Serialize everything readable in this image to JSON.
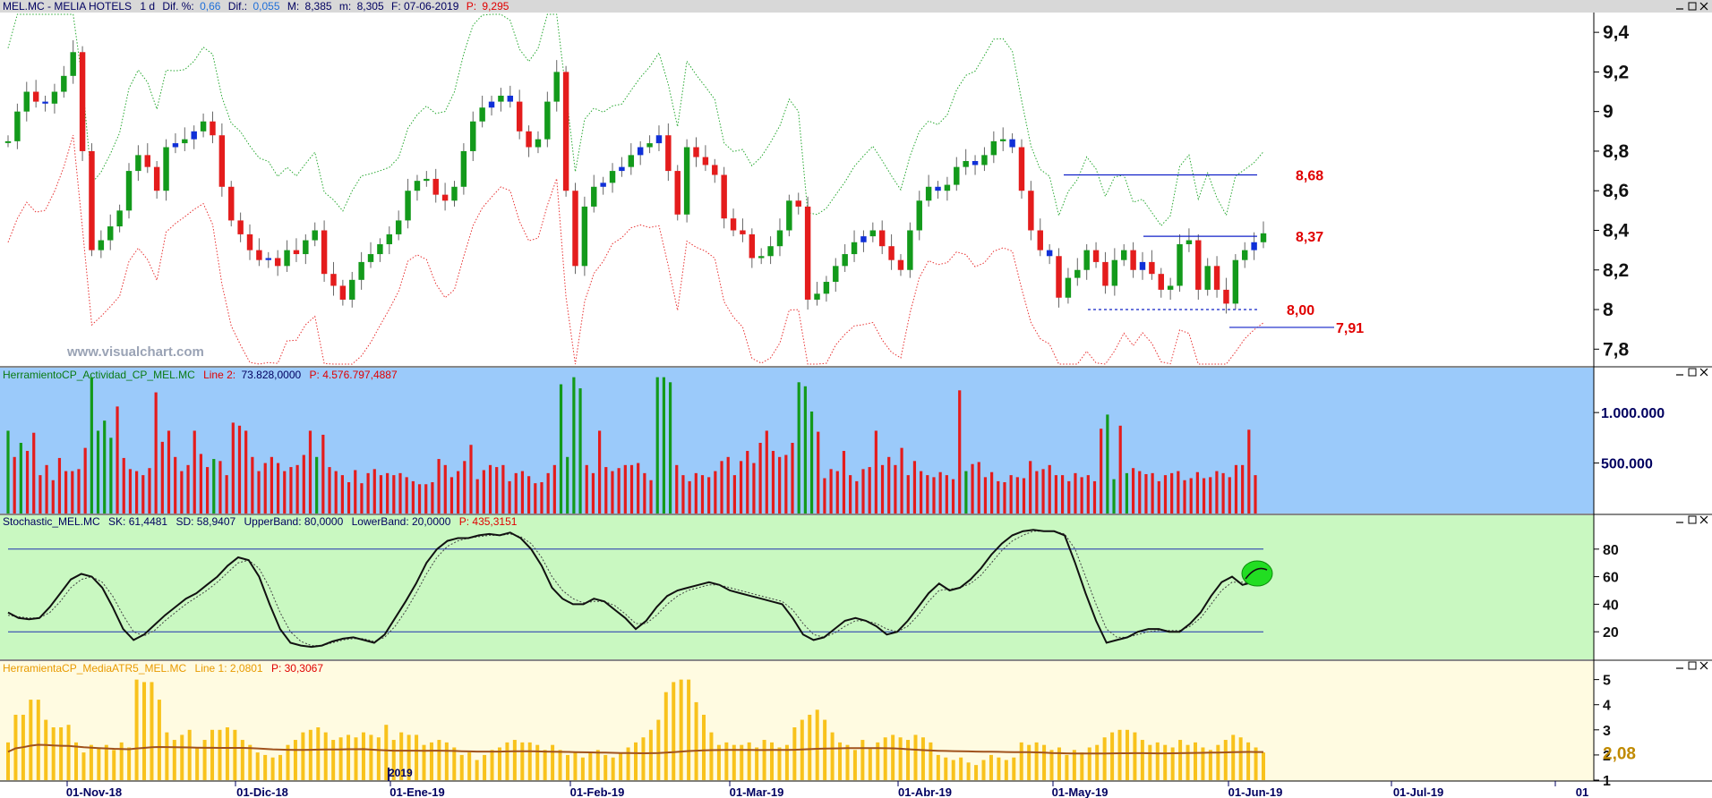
{
  "main_title": {
    "symbol": "MEL.MC - MELIA HOTELS",
    "period": "1 d",
    "dif_pct_label": "Dif. %:",
    "dif_pct": "0,66",
    "dif_label": "Dif.:",
    "dif": "0,055",
    "max_label": "M:",
    "max": "8,385",
    "min_label": "m:",
    "min": "8,305",
    "date_label": "F: 07-06-2019",
    "p_label": "P:",
    "p": "9,295"
  },
  "watermark": "www.visualchart.com",
  "colors": {
    "up": "#139a1b",
    "down": "#e41c1c",
    "inside": "#1030d8",
    "axis_text": "#000060",
    "level": "#e00000",
    "vol_bg": "#9bcafa",
    "stoch_bg": "#c9f8c1",
    "atr_bg": "#fffbe1"
  },
  "chart_data": [
    {
      "type": "candlestick",
      "title": "MEL.MC - MELIA HOTELS",
      "ylim": [
        7.72,
        9.5
      ],
      "yticks": [
        "9,4",
        "9,2",
        "9",
        "8,8",
        "8,6",
        "8,4",
        "8,2",
        "8",
        "7,8"
      ],
      "ytick_values": [
        9.4,
        9.2,
        9.0,
        8.8,
        8.6,
        8.4,
        8.2,
        8.0,
        7.8
      ],
      "x_axis_labels": [
        "01-Nov-18",
        "01-Dic-18",
        "01-Ene-19",
        "01-Feb-19",
        "01-Mar-19",
        "01-Abr-19",
        "01-May-19",
        "01-Jun-19",
        "01-Jul-19",
        "01"
      ],
      "year_marker": "2019",
      "closes": [
        8.85,
        9.0,
        9.1,
        9.05,
        9.04,
        9.1,
        9.18,
        9.3,
        8.8,
        8.3,
        8.35,
        8.42,
        8.5,
        8.7,
        8.78,
        8.72,
        8.6,
        8.82,
        8.84,
        8.86,
        8.9,
        8.95,
        8.88,
        8.62,
        8.45,
        8.38,
        8.3,
        8.25,
        8.26,
        8.22,
        8.3,
        8.28,
        8.35,
        8.4,
        8.18,
        8.12,
        8.05,
        8.15,
        8.24,
        8.28,
        8.33,
        8.38,
        8.45,
        8.6,
        8.65,
        8.66,
        8.58,
        8.55,
        8.62,
        8.8,
        8.95,
        9.02,
        9.05,
        9.08,
        9.05,
        8.9,
        8.82,
        8.86,
        9.05,
        9.2,
        8.6,
        8.22,
        8.52,
        8.62,
        8.64,
        8.7,
        8.72,
        8.78,
        8.82,
        8.84,
        8.88,
        8.7,
        8.48,
        8.82,
        8.77,
        8.73,
        8.68,
        8.46,
        8.4,
        8.38,
        8.26,
        8.27,
        8.32,
        8.4,
        8.55,
        8.52,
        8.05,
        8.08,
        8.14,
        8.22,
        8.28,
        8.34,
        8.37,
        8.4,
        8.32,
        8.25,
        8.2,
        8.4,
        8.55,
        8.62,
        8.6,
        8.63,
        8.72,
        8.75,
        8.73,
        8.78,
        8.85,
        8.86,
        8.82,
        8.6,
        8.4,
        8.3,
        8.27,
        8.06,
        8.16,
        8.2,
        8.3,
        8.24,
        8.12,
        8.25,
        8.3,
        8.2,
        8.24,
        8.18,
        8.1,
        8.12,
        8.33,
        8.35,
        8.1,
        8.22,
        8.1,
        8.03,
        8.25,
        8.3,
        8.34,
        8.385
      ],
      "ma_line": "dotted green upper / dotted red lower envelopes",
      "levels": [
        {
          "value": 8.68,
          "label": "8,68",
          "style": "solid"
        },
        {
          "value": 8.37,
          "label": "8,37",
          "style": "solid"
        },
        {
          "value": 8.0,
          "label": "8,00",
          "style": "dashed"
        },
        {
          "value": 7.91,
          "label": "7,91",
          "style": "solid"
        }
      ]
    },
    {
      "type": "bar",
      "title": "HerramientoCP_Actividad_CP_MEL.MC",
      "header": {
        "name": "HerramientoCP_Actividad_CP_MEL.MC",
        "line": "Line 2:",
        "line_val": "73.828,0000",
        "p": "P: 4.576.797,4887"
      },
      "yticks": [
        "1.000.000",
        "500.000"
      ],
      "ytick_values": [
        1000000,
        500000
      ],
      "ylim": [
        0,
        1400000
      ],
      "values": [
        820000,
        560000,
        700000,
        620000,
        800000,
        380000,
        480000,
        330000,
        550000,
        420000,
        420000,
        440000,
        650000,
        1350000,
        820000,
        920000,
        750000,
        1060000,
        550000,
        440000,
        420000,
        380000,
        450000,
        1200000,
        710000,
        820000,
        560000,
        420000,
        480000,
        820000,
        590000,
        460000,
        540000,
        520000,
        380000,
        900000,
        870000,
        820000,
        560000,
        420000,
        500000,
        560000,
        500000,
        420000,
        460000,
        480000,
        580000,
        820000,
        560000,
        780000,
        460000,
        420000,
        380000,
        310000,
        430000,
        300000,
        400000,
        440000,
        380000,
        400000,
        380000,
        400000,
        360000,
        320000,
        290000,
        290000,
        310000,
        540000,
        480000,
        360000,
        420000,
        520000,
        680000,
        340000,
        430000,
        480000,
        460000,
        480000,
        320000,
        400000,
        420000,
        370000,
        300000,
        310000,
        400000,
        480000,
        1280000,
        560000,
        1350000,
        1240000,
        480000,
        400000,
        820000,
        460000,
        420000,
        450000,
        480000,
        480000,
        500000,
        400000,
        330000,
        1350000,
        1350000,
        1300000,
        480000,
        380000,
        320000,
        400000,
        380000,
        360000,
        420000,
        520000,
        560000,
        380000,
        520000,
        620000,
        500000,
        700000,
        820000,
        620000,
        560000,
        580000,
        700000,
        1300000,
        1260000,
        1010000,
        810000,
        350000,
        440000,
        420000,
        620000,
        380000,
        320000,
        440000,
        460000,
        820000,
        480000,
        560000,
        480000,
        650000,
        380000,
        520000,
        420000,
        380000,
        360000,
        410000,
        380000,
        340000,
        1220000,
        420000,
        490000,
        510000,
        360000,
        410000,
        320000,
        310000,
        380000,
        360000,
        350000,
        520000,
        420000,
        440000,
        480000,
        380000,
        380000,
        320000,
        400000,
        360000,
        380000,
        320000,
        840000,
        980000,
        340000,
        870000,
        400000,
        450000,
        420000,
        390000,
        400000,
        320000,
        380000,
        400000,
        420000,
        330000,
        350000,
        410000,
        350000,
        360000,
        420000,
        400000,
        360000,
        480000,
        480000,
        830000,
        380000
      ],
      "colors_up": [
        true,
        false,
        true,
        false,
        false,
        false,
        false,
        false,
        false,
        false,
        false,
        false,
        false,
        true,
        true,
        true,
        true,
        false,
        false,
        false,
        false,
        false,
        false,
        false,
        false,
        false,
        false,
        false,
        false,
        false,
        false,
        false,
        true,
        false,
        false,
        false,
        false,
        false,
        false,
        false,
        false,
        false,
        false,
        false,
        false,
        false,
        false,
        false,
        true,
        false,
        false,
        false,
        false,
        false,
        false,
        false,
        false,
        false,
        false,
        false,
        false,
        false,
        false,
        false,
        false,
        false,
        false,
        false,
        false,
        false,
        false,
        false,
        false,
        false,
        false,
        false,
        false,
        false,
        false,
        false,
        false,
        false,
        false,
        false,
        false,
        false,
        true,
        true,
        true,
        true,
        false,
        false,
        false,
        false,
        false,
        false,
        false,
        false,
        false,
        false,
        false,
        true,
        true,
        true,
        false,
        false,
        false,
        false,
        false,
        false,
        false,
        false,
        false,
        false,
        false,
        false,
        false,
        false,
        false,
        false,
        false,
        false,
        false,
        true,
        true,
        true,
        false,
        false,
        false,
        false,
        false,
        false,
        false,
        false,
        false,
        false,
        false,
        false,
        false,
        false,
        false,
        false,
        false,
        false,
        false,
        false,
        false,
        false,
        false,
        true,
        false,
        false,
        false,
        false,
        false,
        false,
        false,
        false,
        false,
        false,
        false,
        false,
        false,
        false,
        false,
        false,
        false,
        false,
        false,
        false,
        false,
        true,
        true,
        false,
        true,
        false,
        false,
        false,
        false,
        false,
        false,
        false,
        false,
        false,
        false,
        false,
        false,
        false,
        false,
        false,
        false,
        false,
        false,
        false,
        false,
        true,
        false
      ]
    },
    {
      "type": "line",
      "title": "Stochastic_MEL.MC",
      "header": {
        "name": "Stochastic_MEL.MC",
        "sk": "SK: 61,4481",
        "sd": "SD: 58,9407",
        "ub": "UpperBand: 80,0000",
        "lb": "LowerBand: 20,0000",
        "p": "P: 435,3151"
      },
      "yticks": [
        "80",
        "60",
        "40",
        "20"
      ],
      "ytick_values": [
        80,
        60,
        40,
        20
      ],
      "ylim": [
        0,
        100
      ],
      "bands": [
        80,
        20
      ],
      "sk": [
        34,
        30,
        29,
        30,
        38,
        48,
        58,
        62,
        60,
        52,
        38,
        22,
        14,
        18,
        25,
        32,
        38,
        44,
        48,
        54,
        60,
        68,
        74,
        72,
        60,
        40,
        22,
        12,
        10,
        9,
        10,
        13,
        15,
        16,
        14,
        12,
        18,
        30,
        42,
        55,
        70,
        80,
        86,
        88,
        88,
        90,
        91,
        90,
        92,
        88,
        80,
        68,
        52,
        44,
        40,
        40,
        44,
        42,
        36,
        30,
        22,
        28,
        38,
        46,
        50,
        52,
        54,
        56,
        54,
        50,
        48,
        46,
        44,
        42,
        40,
        30,
        18,
        14,
        16,
        22,
        28,
        30,
        28,
        24,
        18,
        20,
        28,
        38,
        48,
        55,
        50,
        52,
        58,
        66,
        76,
        84,
        90,
        93,
        94,
        93,
        93,
        90,
        70,
        48,
        28,
        12,
        14,
        16,
        20,
        22,
        22,
        20,
        20,
        26,
        34,
        46,
        56,
        60,
        54,
        56,
        61
      ],
      "sd": [
        32,
        31,
        30,
        30,
        34,
        42,
        52,
        58,
        60,
        56,
        46,
        32,
        20,
        17,
        21,
        28,
        34,
        40,
        45,
        50,
        56,
        63,
        70,
        72,
        66,
        52,
        34,
        20,
        13,
        10,
        10,
        12,
        14,
        15,
        15,
        13,
        16,
        24,
        35,
        48,
        62,
        74,
        82,
        86,
        88,
        89,
        90,
        90,
        91,
        89,
        84,
        74,
        60,
        50,
        44,
        41,
        42,
        42,
        39,
        33,
        26,
        26,
        32,
        40,
        46,
        50,
        52,
        54,
        54,
        52,
        50,
        48,
        46,
        44,
        42,
        36,
        26,
        18,
        16,
        19,
        24,
        28,
        28,
        26,
        22,
        20,
        24,
        32,
        42,
        50,
        51,
        52,
        55,
        61,
        70,
        79,
        86,
        90,
        93,
        93,
        93,
        91,
        80,
        60,
        40,
        22,
        16,
        16,
        18,
        20,
        21,
        21,
        21,
        24,
        30,
        40,
        50,
        56,
        56,
        55,
        59
      ]
    },
    {
      "type": "bar",
      "title": "HerramientaCP_MediaATR5_MEL.MC",
      "header": {
        "name": "HerramientaCP_MediaATR5_MEL.MC",
        "line": "Line 1: 2,0801",
        "p": "P: 30,3067"
      },
      "yticks": [
        "5",
        "4",
        "3",
        "2",
        "1"
      ],
      "ytick_values": [
        5,
        4,
        3,
        2,
        1
      ],
      "ylim": [
        1,
        5.2
      ],
      "current_value_label": "2,08",
      "values": [
        2.5,
        3.6,
        3.6,
        4.2,
        4.2,
        3.4,
        3.1,
        3.1,
        3.2,
        2.5,
        2.1,
        2.4,
        2.3,
        2.4,
        2.2,
        2.5,
        2.3,
        5.0,
        4.9,
        4.9,
        4.2,
        2.9,
        2.6,
        2.8,
        3.0,
        2.3,
        2.6,
        3.0,
        3.0,
        3.1,
        3.0,
        2.6,
        2.4,
        2.1,
        2.0,
        1.9,
        2.0,
        2.4,
        2.6,
        2.9,
        3.0,
        3.1,
        2.9,
        2.6,
        2.7,
        2.8,
        2.7,
        2.9,
        2.8,
        2.7,
        3.2,
        2.6,
        2.9,
        2.8,
        2.8,
        2.4,
        2.5,
        2.6,
        2.5,
        2.3,
        2.0,
        2.1,
        1.8,
        2.0,
        2.2,
        2.3,
        2.5,
        2.6,
        2.5,
        2.5,
        2.4,
        2.2,
        2.4,
        2.2,
        2.0,
        2.1,
        1.9,
        2.1,
        2.2,
        2.0,
        1.9,
        2.1,
        2.3,
        2.5,
        2.7,
        3.0,
        3.4,
        4.5,
        4.9,
        5.0,
        5.0,
        4.1,
        3.6,
        2.9,
        2.4,
        2.5,
        2.4,
        2.4,
        2.5,
        2.3,
        2.6,
        2.5,
        2.3,
        2.4,
        3.1,
        3.4,
        3.6,
        3.8,
        3.4,
        2.9,
        2.5,
        2.4,
        2.2,
        2.6,
        2.3,
        2.5,
        2.7,
        2.8,
        2.7,
        2.6,
        2.8,
        2.7,
        2.5,
        2.0,
        1.9,
        1.8,
        1.9,
        1.7,
        1.6,
        1.8,
        2.0,
        1.9,
        1.8,
        1.9,
        2.5,
        2.4,
        2.5,
        2.4,
        2.2,
        2.3,
        2.0,
        2.2,
        2.1,
        2.3,
        2.4,
        2.7,
        2.9,
        3.0,
        3.0,
        2.9,
        2.6,
        2.4,
        2.5,
        2.4,
        2.3,
        2.6,
        2.4,
        2.5,
        2.3,
        2.2,
        2.4,
        2.6,
        2.8,
        2.7,
        2.5,
        2.3,
        2.1
      ],
      "ma_line": "brown moving average near 2,3"
    }
  ]
}
